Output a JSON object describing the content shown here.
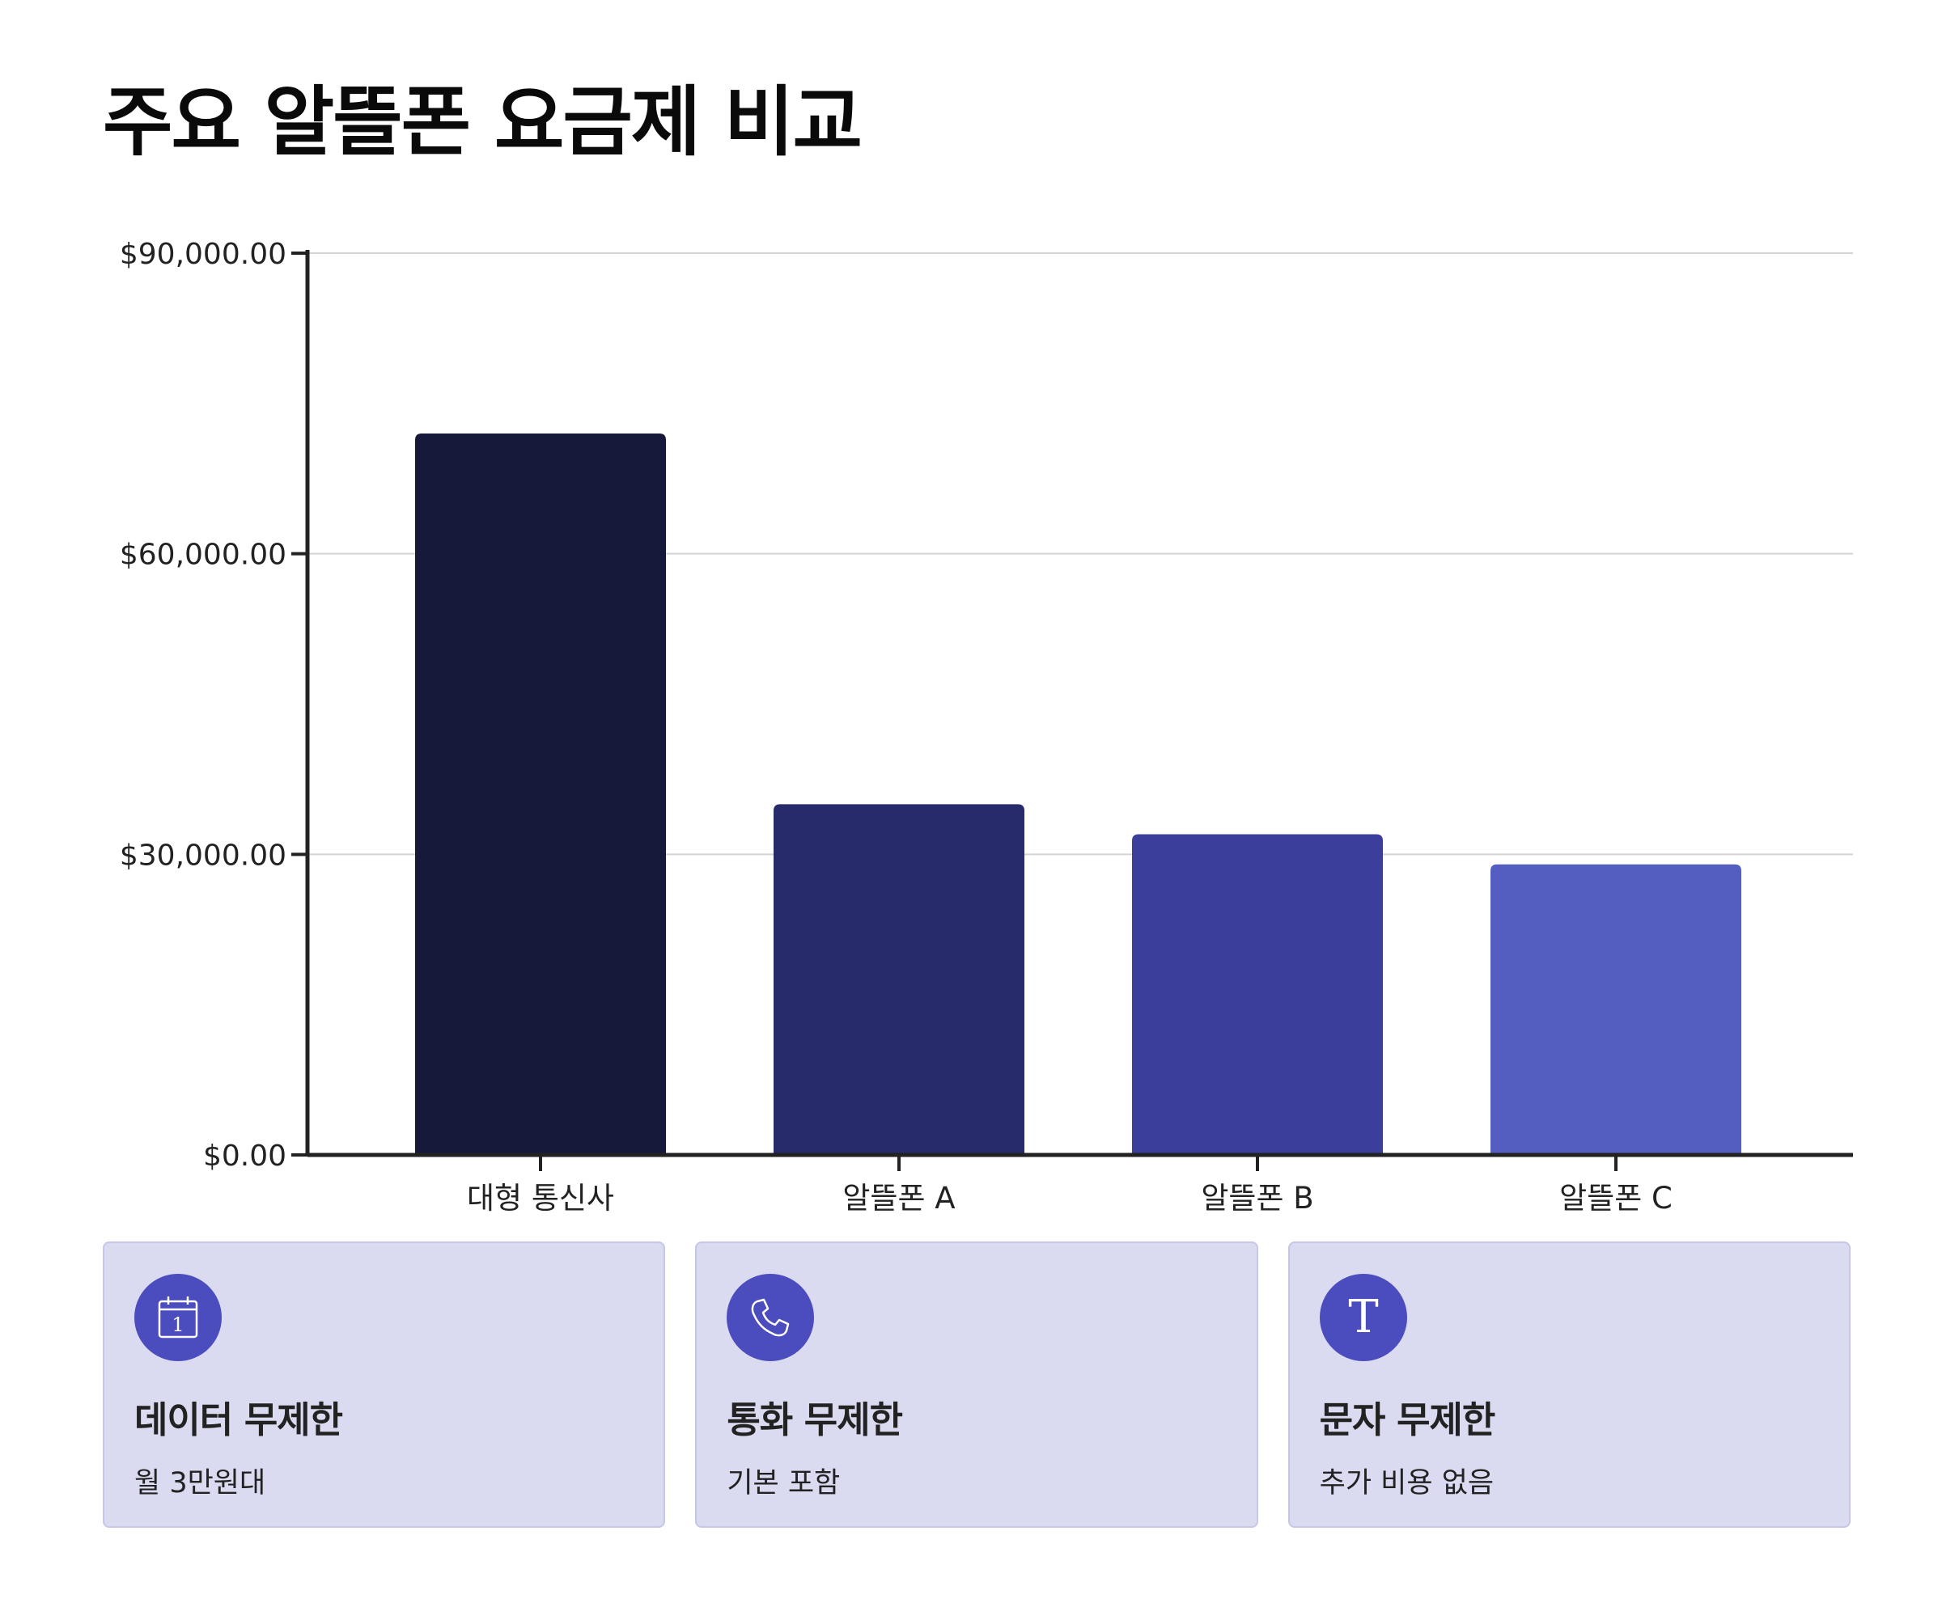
{
  "title": "주요 알뜰폰 요금제 비교",
  "chart_data": {
    "type": "bar",
    "title": "주요 알뜰폰 요금제 비교",
    "categories": [
      "대형 통신사",
      "알뜰폰 A",
      "알뜰폰 B",
      "알뜰폰 C"
    ],
    "values": [
      72000,
      35000,
      32000,
      29000
    ],
    "colors": [
      "#16193a",
      "#272b6b",
      "#3b3f9b",
      "#545dc0"
    ],
    "ylim": [
      0,
      90000
    ],
    "yticks": [
      0,
      30000,
      60000,
      90000
    ],
    "ytick_labels": [
      "$0.00",
      "$30,000.00",
      "$60,000.00",
      "$90,000.00"
    ],
    "xlabel": "",
    "ylabel": "",
    "grid": true,
    "legend": "none"
  },
  "cards": [
    {
      "icon": "calendar-icon",
      "icon_text": "1",
      "title": "데이터 무제한",
      "desc": "월 3만원대"
    },
    {
      "icon": "phone-icon",
      "title": "통화 무제한",
      "desc": "기본 포함"
    },
    {
      "icon": "text-icon",
      "icon_text": "T",
      "title": "문자 무제한",
      "desc": "추가 비용 없음"
    }
  ],
  "colors": {
    "card_background": "#dadaf0",
    "card_border": "#c6c6e6",
    "icon_background": "#4b4cbd",
    "axis": "#222222",
    "grid": "#d4d4d4"
  }
}
